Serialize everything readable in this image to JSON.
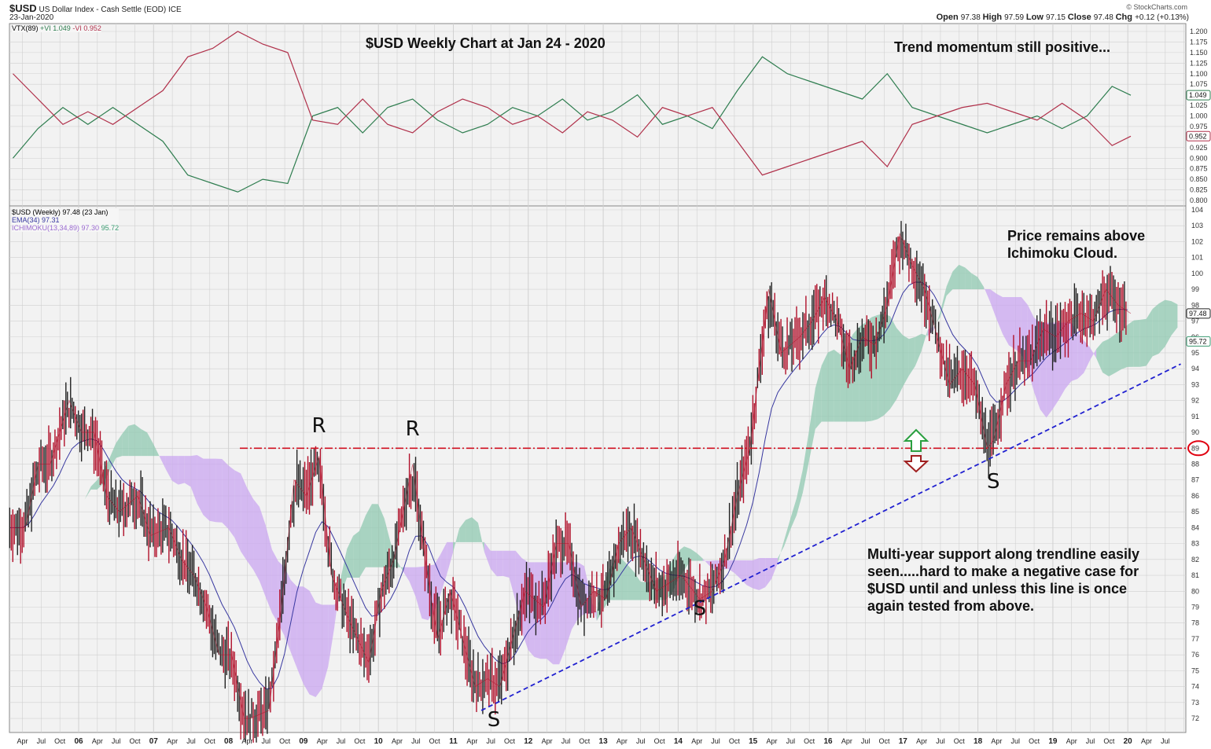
{
  "header": {
    "symbol": "$USD",
    "name": "US Dollar Index - Cash Settle (EOD)",
    "exchange": "ICE",
    "date": "23-Jan-2020",
    "credit": "© StockCharts.com",
    "ohlc": [
      {
        "k": "Open",
        "v": "97.38"
      },
      {
        "k": "High",
        "v": "97.59"
      },
      {
        "k": "Low",
        "v": "97.15"
      },
      {
        "k": "Close",
        "v": "97.48"
      },
      {
        "k": "Chg",
        "v": "+0.12 (+0.13%)"
      }
    ]
  },
  "legend_top": {
    "name": "VTX(89)",
    "plus": "+VI 1.049",
    "minus": "-VI 0.952"
  },
  "legend_main": {
    "price": "$USD (Weekly) 97.48 (23 Jan)",
    "ema": "EMA(34) 97.31",
    "ichimoku": "ICHIMOKU(13,34,89) 97.30",
    "ichimoku2": "95.72"
  },
  "annotations": {
    "title": "$USD Weekly Chart at Jan 24 - 2020",
    "momentum": "Trend momentum still positive...",
    "price_note_1": "Price remains above",
    "price_note_2": "Ichimoku Cloud.",
    "support_1": "Multi-year support along trendline easily",
    "support_2": "seen.....hard to make a negative case for",
    "support_3": "$USD until and unless this line is once",
    "support_4": "again tested from above.",
    "marks": [
      {
        "t": "R",
        "d": "2009-03",
        "p": 90
      },
      {
        "t": "R",
        "d": "2010-06",
        "p": 89.8
      },
      {
        "t": "S",
        "d": "2011-07",
        "p": 71.5
      },
      {
        "t": "S",
        "d": "2014-04",
        "p": 78.5
      },
      {
        "t": "S",
        "d": "2018-03",
        "p": 86.5
      }
    ]
  },
  "colors": {
    "plus_vi": "#2e7d4f",
    "minus_vi": "#b0304a",
    "price": "#b0102a",
    "ema": "#3838a0",
    "cloud_bull": "#8fc8b0",
    "cloud_bear": "#c9a6f0",
    "resistance": "#d01020",
    "trendline": "#2020d0",
    "grid": "#d0d0d0",
    "panel_bg": "#f2f2f2"
  },
  "chart_data": [
    {
      "type": "line",
      "title": "",
      "ylabel": "",
      "ylim": [
        0.8,
        1.2
      ],
      "yticks": [
        "1.200",
        "1.175",
        "1.150",
        "1.125",
        "1.100",
        "1.075",
        "1.025",
        "1.000",
        "0.975",
        "0.925",
        "0.900",
        "0.875",
        "0.850",
        "0.825",
        "0.800"
      ],
      "last_labels": {
        "plus": "1.049",
        "minus": "0.952"
      },
      "x": [
        "2005-02",
        "2005-06",
        "2005-10",
        "2006-02",
        "2006-06",
        "2006-10",
        "2007-02",
        "2007-06",
        "2007-10",
        "2008-02",
        "2008-06",
        "2008-10",
        "2009-02",
        "2009-06",
        "2009-10",
        "2010-02",
        "2010-06",
        "2010-10",
        "2011-02",
        "2011-06",
        "2011-10",
        "2012-02",
        "2012-06",
        "2012-10",
        "2013-02",
        "2013-06",
        "2013-10",
        "2014-02",
        "2014-06",
        "2014-10",
        "2015-02",
        "2015-06",
        "2015-10",
        "2016-02",
        "2016-06",
        "2016-10",
        "2017-02",
        "2017-06",
        "2017-10",
        "2018-02",
        "2018-06",
        "2018-10",
        "2019-02",
        "2019-06",
        "2019-10",
        "2020-01"
      ],
      "series": [
        {
          "name": "+VI",
          "values": [
            0.9,
            0.97,
            1.02,
            0.98,
            1.02,
            0.98,
            0.94,
            0.86,
            0.84,
            0.82,
            0.85,
            0.84,
            1.0,
            1.02,
            0.96,
            1.02,
            1.04,
            0.99,
            0.96,
            0.98,
            1.02,
            1.0,
            1.04,
            0.99,
            1.01,
            1.05,
            0.98,
            1.0,
            0.97,
            1.06,
            1.14,
            1.1,
            1.08,
            1.06,
            1.04,
            1.1,
            1.02,
            1.0,
            0.98,
            0.96,
            0.98,
            1.0,
            0.97,
            1.0,
            1.07,
            1.049
          ]
        },
        {
          "name": "-VI",
          "values": [
            1.1,
            1.04,
            0.98,
            1.01,
            0.98,
            1.02,
            1.06,
            1.14,
            1.16,
            1.2,
            1.17,
            1.15,
            0.99,
            0.98,
            1.04,
            0.98,
            0.96,
            1.01,
            1.04,
            1.02,
            0.98,
            1.0,
            0.96,
            1.01,
            0.99,
            0.95,
            1.02,
            1.0,
            1.02,
            0.94,
            0.86,
            0.88,
            0.9,
            0.92,
            0.94,
            0.88,
            0.98,
            1.0,
            1.02,
            1.03,
            1.01,
            0.99,
            1.03,
            0.99,
            0.93,
            0.952
          ]
        }
      ]
    },
    {
      "type": "line",
      "title": "",
      "ylabel": "",
      "ylim": [
        71,
        104
      ],
      "yticks": [
        "104",
        "103",
        "102",
        "101",
        "100",
        "99",
        "98",
        "97",
        "96",
        "95",
        "94",
        "93",
        "92",
        "91",
        "90",
        "89",
        "88",
        "87",
        "86",
        "85",
        "84",
        "83",
        "82",
        "81",
        "80",
        "79",
        "78",
        "77",
        "76",
        "75",
        "74",
        "73",
        "72"
      ],
      "xticks": [
        "Apr",
        "Jul",
        "Oct",
        "06",
        "Apr",
        "Jul",
        "Oct",
        "07",
        "Apr",
        "Jul",
        "Oct",
        "08",
        "Apr",
        "Jul",
        "Oct",
        "09",
        "Apr",
        "Jul",
        "Oct",
        "10",
        "Apr",
        "Jul",
        "Oct",
        "11",
        "Apr",
        "Jul",
        "Oct",
        "12",
        "Apr",
        "Jul",
        "Oct",
        "13",
        "Apr",
        "Jul",
        "Oct",
        "14",
        "Apr",
        "Jul",
        "Oct",
        "15",
        "Apr",
        "Jul",
        "Oct",
        "16",
        "Apr",
        "Jul",
        "Oct",
        "17",
        "Apr",
        "Jul",
        "Oct",
        "18",
        "Apr",
        "Jul",
        "Oct",
        "19",
        "Apr",
        "Jul",
        "Oct",
        "20",
        "Apr",
        "Jul"
      ],
      "last_labels": {
        "price": "97.48",
        "cloud": "95.72",
        "resistance": "89"
      },
      "resistance_level": 89,
      "trendline": [
        {
          "x": "2011-05",
          "y": 72.5
        },
        {
          "x": "2020-09",
          "y": 94.3
        }
      ],
      "x": [
        "2005-02",
        "2005-04",
        "2005-06",
        "2005-08",
        "2005-11",
        "2006-01",
        "2006-03",
        "2006-05",
        "2006-07",
        "2006-10",
        "2006-12",
        "2007-03",
        "2007-05",
        "2007-07",
        "2007-09",
        "2007-11",
        "2008-01",
        "2008-03",
        "2008-04",
        "2008-07",
        "2008-09",
        "2008-11",
        "2009-01",
        "2009-03",
        "2009-05",
        "2009-08",
        "2009-11",
        "2010-01",
        "2010-03",
        "2010-06",
        "2010-08",
        "2010-10",
        "2010-12",
        "2011-02",
        "2011-04",
        "2011-06",
        "2011-08",
        "2011-10",
        "2011-12",
        "2012-03",
        "2012-05",
        "2012-07",
        "2012-09",
        "2012-11",
        "2013-01",
        "2013-03",
        "2013-05",
        "2013-07",
        "2013-09",
        "2013-11",
        "2014-01",
        "2014-04",
        "2014-06",
        "2014-08",
        "2014-10",
        "2014-12",
        "2015-03",
        "2015-05",
        "2015-08",
        "2015-10",
        "2015-12",
        "2016-02",
        "2016-04",
        "2016-06",
        "2016-08",
        "2016-10",
        "2016-12",
        "2017-02",
        "2017-04",
        "2017-06",
        "2017-08",
        "2017-10",
        "2017-12",
        "2018-02",
        "2018-03",
        "2018-05",
        "2018-07",
        "2018-09",
        "2018-11",
        "2019-01",
        "2019-03",
        "2019-05",
        "2019-07",
        "2019-09",
        "2019-11",
        "2020-01"
      ],
      "series": [
        {
          "name": "$USD",
          "values": [
            84,
            84,
            88,
            88,
            92,
            90,
            90,
            86,
            85,
            86,
            83.5,
            84,
            82,
            81,
            79,
            76,
            76,
            72,
            72,
            72.5,
            79,
            87,
            86,
            88.5,
            81,
            78,
            75.5,
            80,
            82,
            88,
            82,
            77,
            80,
            77,
            74,
            74.5,
            74,
            77,
            80,
            79,
            83,
            83,
            79,
            80,
            79.5,
            83,
            84,
            82,
            80,
            80.5,
            81,
            79.5,
            80,
            82,
            86,
            89,
            99,
            95,
            96,
            97,
            98.5,
            97,
            94,
            96,
            95.5,
            98,
            102.5,
            100.5,
            99,
            96,
            93,
            94,
            93,
            89,
            89.5,
            93,
            94.5,
            94.5,
            96.5,
            96,
            97,
            97.5,
            97,
            99,
            98,
            97.48
          ]
        }
      ]
    }
  ]
}
